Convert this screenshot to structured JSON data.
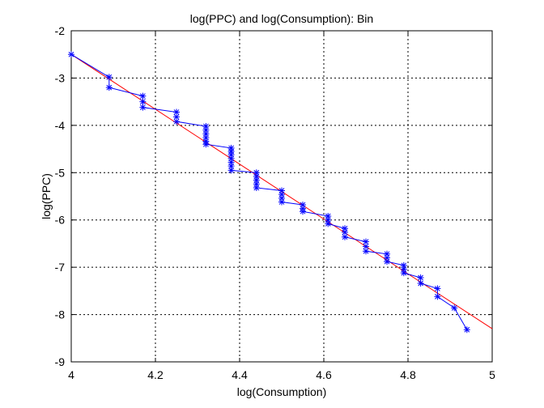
{
  "chart_data": {
    "type": "line",
    "title": "log(PPC) and log(Consumption): Bin",
    "xlabel": "log(Consumption)",
    "ylabel": "log(PPC)",
    "xlim": [
      4,
      5
    ],
    "ylim": [
      -9,
      -2
    ],
    "xticks": [
      "4",
      "4.2",
      "4.4",
      "4.6",
      "4.8",
      "5"
    ],
    "yticks": [
      "-9",
      "-8",
      "-7",
      "-6",
      "-5",
      "-4",
      "-3",
      "-2"
    ],
    "grid": true,
    "colors": {
      "data": "#0000ff",
      "fit": "#ff0000",
      "grid": "#000000"
    },
    "series": [
      {
        "marker": "asterisk",
        "points": [
          [
            4.0,
            -2.5
          ],
          [
            4.09,
            -2.98
          ],
          [
            4.09,
            -3.2
          ],
          [
            4.17,
            -3.38
          ],
          [
            4.17,
            -3.5
          ],
          [
            4.17,
            -3.62
          ],
          [
            4.25,
            -3.72
          ],
          [
            4.25,
            -3.82
          ],
          [
            4.25,
            -3.92
          ],
          [
            4.32,
            -4.02
          ],
          [
            4.32,
            -4.1
          ],
          [
            4.32,
            -4.18
          ],
          [
            4.32,
            -4.26
          ],
          [
            4.32,
            -4.34
          ],
          [
            4.32,
            -4.4
          ],
          [
            4.38,
            -4.48
          ],
          [
            4.38,
            -4.55
          ],
          [
            4.38,
            -4.62
          ],
          [
            4.38,
            -4.7
          ],
          [
            4.38,
            -4.78
          ],
          [
            4.38,
            -4.86
          ],
          [
            4.38,
            -4.95
          ],
          [
            4.44,
            -5.0
          ],
          [
            4.44,
            -5.08
          ],
          [
            4.44,
            -5.16
          ],
          [
            4.44,
            -5.24
          ],
          [
            4.44,
            -5.32
          ],
          [
            4.5,
            -5.38
          ],
          [
            4.5,
            -5.46
          ],
          [
            4.5,
            -5.54
          ],
          [
            4.5,
            -5.62
          ],
          [
            4.55,
            -5.68
          ],
          [
            4.55,
            -5.76
          ],
          [
            4.55,
            -5.82
          ],
          [
            4.61,
            -5.92
          ],
          [
            4.61,
            -6.0
          ],
          [
            4.61,
            -6.08
          ],
          [
            4.65,
            -6.18
          ],
          [
            4.65,
            -6.26
          ],
          [
            4.65,
            -6.36
          ],
          [
            4.7,
            -6.46
          ],
          [
            4.7,
            -6.56
          ],
          [
            4.7,
            -6.66
          ],
          [
            4.75,
            -6.72
          ],
          [
            4.75,
            -6.8
          ],
          [
            4.75,
            -6.88
          ],
          [
            4.79,
            -6.96
          ],
          [
            4.79,
            -7.04
          ],
          [
            4.79,
            -7.12
          ],
          [
            4.83,
            -7.22
          ],
          [
            4.83,
            -7.34
          ],
          [
            4.87,
            -7.45
          ],
          [
            4.87,
            -7.62
          ],
          [
            4.91,
            -7.86
          ],
          [
            4.94,
            -8.32
          ]
        ]
      },
      {
        "points": [
          [
            4.0,
            -2.5
          ],
          [
            5.0,
            -8.3
          ]
        ]
      }
    ]
  }
}
